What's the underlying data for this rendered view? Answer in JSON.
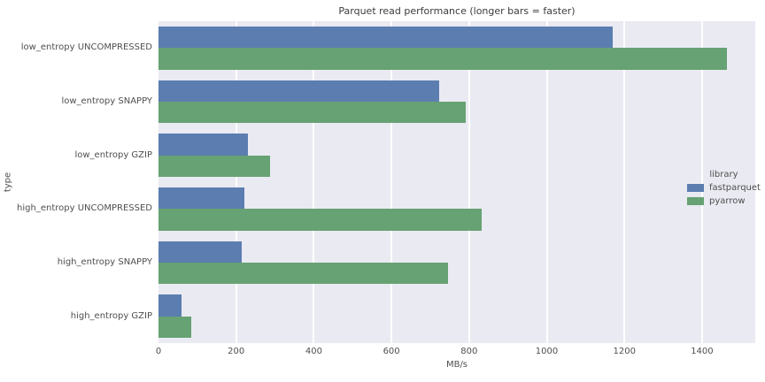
{
  "chart_data": {
    "type": "bar",
    "orientation": "horizontal",
    "title": "Parquet read performance (longer bars = faster)",
    "xlabel": "MB/s",
    "ylabel": "type",
    "legend_title": "library",
    "legend_position": "center right",
    "grid": true,
    "plot_background": "#eaeaf2",
    "gridline_color": "#ffffff",
    "xlim": [
      0,
      1537
    ],
    "xticks": [
      0,
      200,
      400,
      600,
      800,
      1000,
      1200,
      1400
    ],
    "categories": [
      "low_entropy UNCOMPRESSED",
      "low_entropy SNAPPY",
      "low_entropy GZIP",
      "high_entropy UNCOMPRESSED",
      "high_entropy SNAPPY",
      "high_entropy GZIP"
    ],
    "series": [
      {
        "name": "fastparquet",
        "color": "#5c7db0",
        "values": [
          1170,
          723,
          230,
          221,
          214,
          59
        ]
      },
      {
        "name": "pyarrow",
        "color": "#66a273",
        "values": [
          1465,
          791,
          287,
          832,
          745,
          84
        ]
      }
    ]
  }
}
